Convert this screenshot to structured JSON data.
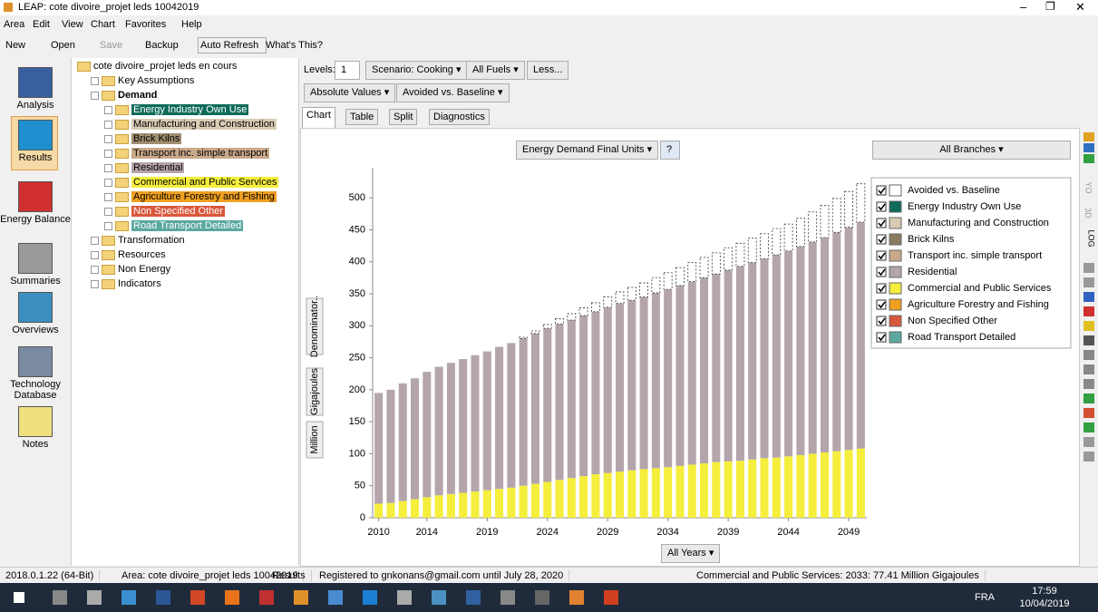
{
  "window": {
    "title": "LEAP: cote divoire_projet leds 10042019"
  },
  "menu": [
    "Area",
    "Edit",
    "View",
    "Chart",
    "Favorites",
    "Help"
  ],
  "toolbar": [
    "New",
    "Open",
    "Save",
    "Backup",
    "Auto Refresh",
    "What's This?"
  ],
  "sidebar": [
    "Analysis",
    "Results",
    "Energy Balance",
    "Summaries",
    "Overviews",
    "Technology Database",
    "Notes"
  ],
  "tree": {
    "label": "cote divoire_projet leds en cours",
    "children": [
      {
        "label": "Key Assumptions"
      },
      {
        "label": "Demand",
        "children": [
          {
            "label": "Energy Industry Own Use",
            "color": "#0e6b5a"
          },
          {
            "label": "Manufacturing and Construction",
            "color": "#d9cbb4"
          },
          {
            "label": "Brick Kilns",
            "color": "#a08f70"
          },
          {
            "label": "Transport inc. simple transport",
            "color": "#c9a98a"
          },
          {
            "label": "Residential",
            "color": "#b4a5ac"
          },
          {
            "label": "Commercial and Public Services",
            "color": "#f5ee3c"
          },
          {
            "label": "Agriculture Forestry and Fishing",
            "color": "#f0a020"
          },
          {
            "label": "Non Specified Other",
            "color": "#d9573a"
          },
          {
            "label": "Road Transport Detailed",
            "color": "#5aa8a0"
          }
        ]
      },
      {
        "label": "Transformation"
      },
      {
        "label": "Resources"
      },
      {
        "label": "Non Energy"
      },
      {
        "label": "Indicators"
      }
    ]
  },
  "controls": {
    "levels_label": "Levels:",
    "levels": 1,
    "scenario": "Scenario: Cooking",
    "fuels": "All Fuels",
    "less": "Less...",
    "values_mode": "Absolute Values",
    "comparison": "Avoided vs. Baseline",
    "tabs": [
      "Chart",
      "Table",
      "Split",
      "Diagnostics"
    ],
    "units": "Energy Demand Final Units",
    "branches": "All Branches",
    "years": "All Years",
    "axis_buttons": [
      "Million",
      "Gigajoules",
      "Denominator.."
    ]
  },
  "right_toolbar": [
    "YO",
    "3D",
    "LOG"
  ],
  "status": [
    "2018.0.1.22 (64-Bit)",
    "Area: cote divoire_projet leds 10042019",
    "Results",
    "Registered to gnkonans@gmail.com until July 28, 2020",
    "Commercial and Public Services: 2033: 77.41 Million Gigajoules"
  ],
  "taskbar": {
    "language": "FRA",
    "time": "17:59",
    "date": "10/04/2019"
  },
  "chart_data": {
    "type": "bar",
    "stacked": true,
    "grid": false,
    "legend": "right",
    "categories": [
      2010,
      null,
      null,
      null,
      2014,
      null,
      null,
      null,
      null,
      2019,
      null,
      null,
      null,
      null,
      2024,
      null,
      null,
      null,
      null,
      2029,
      null,
      null,
      null,
      null,
      2034,
      null,
      null,
      null,
      null,
      2039,
      null,
      null,
      null,
      null,
      2044,
      null,
      null,
      null,
      null,
      2049,
      null
    ],
    "ylim": [
      0,
      540
    ],
    "yticks": [
      0,
      50,
      100,
      150,
      200,
      250,
      300,
      350,
      400,
      450,
      500
    ],
    "series": [
      {
        "name": "Avoided vs. Baseline",
        "color": "#ffffff",
        "values": [
          0,
          0,
          0,
          0,
          0,
          0,
          0,
          0,
          0,
          0,
          0,
          0,
          2,
          4,
          6,
          8,
          10,
          12,
          14,
          16,
          18,
          20,
          22,
          24,
          26,
          28,
          30,
          32,
          33,
          35,
          36,
          38,
          39,
          41,
          42,
          44,
          47,
          50,
          53,
          56,
          60
        ]
      },
      {
        "name": "Energy Industry Own Use",
        "color": "#0e6b5a",
        "values": [
          0,
          0,
          0,
          0,
          0,
          0,
          0,
          0,
          0,
          0,
          0,
          0,
          0,
          0,
          0,
          0,
          0,
          0,
          0,
          0,
          0,
          0,
          0,
          0,
          0,
          0,
          0,
          0,
          0,
          0,
          0,
          0,
          0,
          0,
          0,
          0,
          0,
          0,
          0,
          0,
          0
        ]
      },
      {
        "name": "Manufacturing and Construction",
        "color": "#d9cbb4",
        "values": [
          0,
          0,
          0,
          0,
          0,
          0,
          0,
          0,
          0,
          0,
          0,
          0,
          0,
          0,
          0,
          0,
          0,
          0,
          0,
          0,
          0,
          0,
          0,
          0,
          0,
          0,
          0,
          0,
          0,
          0,
          0,
          0,
          0,
          0,
          0,
          0,
          0,
          0,
          0,
          0,
          0
        ]
      },
      {
        "name": "Brick  Kilns",
        "color": "#8a7a5f",
        "values": [
          0,
          0,
          0,
          0,
          0,
          0,
          0,
          0,
          0,
          0,
          0,
          0,
          0,
          0,
          0,
          0,
          0,
          0,
          0,
          0,
          0,
          0,
          0,
          0,
          0,
          0,
          0,
          0,
          0,
          0,
          0,
          0,
          0,
          0,
          0,
          0,
          0,
          0,
          0,
          0,
          0
        ]
      },
      {
        "name": "Transport inc. simple transport",
        "color": "#c9a98a",
        "values": [
          0,
          0,
          0,
          0,
          0,
          0,
          0,
          0,
          0,
          0,
          0,
          0,
          0,
          0,
          0,
          0,
          0,
          0,
          0,
          0,
          0,
          0,
          0,
          0,
          0,
          0,
          0,
          0,
          0,
          0,
          0,
          0,
          0,
          0,
          0,
          0,
          0,
          0,
          0,
          0,
          0
        ]
      },
      {
        "name": "Residential",
        "color": "#b4a5ac",
        "values": [
          173,
          177,
          184,
          189,
          196,
          201,
          205,
          209,
          213,
          217,
          222,
          226,
          230,
          235,
          240,
          244,
          247,
          251,
          254,
          259,
          263,
          266,
          269,
          274,
          278,
          282,
          286,
          290,
          294,
          299,
          304,
          308,
          312,
          317,
          321,
          326,
          331,
          336,
          342,
          348,
          354
        ]
      },
      {
        "name": "Commercial and Public Services",
        "color": "#f5ee3c",
        "values": [
          22,
          23,
          26,
          29,
          32,
          35,
          37,
          39,
          41,
          43,
          45,
          47,
          50,
          53,
          56,
          59,
          62,
          65,
          68,
          70,
          72,
          74,
          76,
          77.41,
          79,
          81,
          83,
          85,
          87,
          88,
          89,
          91,
          93,
          94,
          96,
          98,
          100,
          102,
          104,
          106,
          108
        ]
      },
      {
        "name": "Agriculture Forestry and Fishing",
        "color": "#f0a020",
        "values": [
          0,
          0,
          0,
          0,
          0,
          0,
          0,
          0,
          0,
          0,
          0,
          0,
          0,
          0,
          0,
          0,
          0,
          0,
          0,
          0,
          0,
          0,
          0,
          0,
          0,
          0,
          0,
          0,
          0,
          0,
          0,
          0,
          0,
          0,
          0,
          0,
          0,
          0,
          0,
          0,
          0
        ]
      },
      {
        "name": "Non Specified Other",
        "color": "#d9573a",
        "values": [
          0,
          0,
          0,
          0,
          0,
          0,
          0,
          0,
          0,
          0,
          0,
          0,
          0,
          0,
          0,
          0,
          0,
          0,
          0,
          0,
          0,
          0,
          0,
          0,
          0,
          0,
          0,
          0,
          0,
          0,
          0,
          0,
          0,
          0,
          0,
          0,
          0,
          0,
          0,
          0,
          0
        ]
      },
      {
        "name": "Road Transport Detailed",
        "color": "#5aa8a0",
        "values": [
          0,
          0,
          0,
          0,
          0,
          0,
          0,
          0,
          0,
          0,
          0,
          0,
          0,
          0,
          0,
          0,
          0,
          0,
          0,
          0,
          0,
          0,
          0,
          0,
          0,
          0,
          0,
          0,
          0,
          0,
          0,
          0,
          0,
          0,
          0,
          0,
          0,
          0,
          0,
          0,
          0
        ]
      }
    ]
  }
}
